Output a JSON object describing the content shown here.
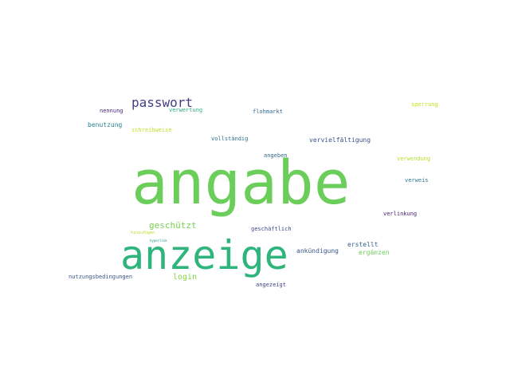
{
  "words": [
    {
      "text": "angabe",
      "color": "#6cce5a"
    },
    {
      "text": "anzeige",
      "color": "#2fb47c"
    },
    {
      "text": "passwort",
      "color": "#433e85"
    },
    {
      "text": "geschützt",
      "color": "#7ad151"
    },
    {
      "text": "login",
      "color": "#86d549"
    },
    {
      "text": "benutzung",
      "color": "#26828e"
    },
    {
      "text": "schreibweise",
      "color": "#c2df23"
    },
    {
      "text": "nennung",
      "color": "#482475"
    },
    {
      "text": "verwertung",
      "color": "#29af7f"
    },
    {
      "text": "flohmarkt",
      "color": "#31688e"
    },
    {
      "text": "sperrung",
      "color": "#c8e020"
    },
    {
      "text": "vollständig",
      "color": "#2c728e"
    },
    {
      "text": "vervielfältigung",
      "color": "#3b528b"
    },
    {
      "text": "angeben",
      "color": "#31688e"
    },
    {
      "text": "verwendung",
      "color": "#b5de2b"
    },
    {
      "text": "verweis",
      "color": "#2a788e"
    },
    {
      "text": "verlinkung",
      "color": "#481c6e"
    },
    {
      "text": "geschäftlich",
      "color": "#3e4989"
    },
    {
      "text": "ankündigung",
      "color": "#39568c"
    },
    {
      "text": "erstellt",
      "color": "#355f8d"
    },
    {
      "text": "ergänzen",
      "color": "#6ece58"
    },
    {
      "text": "nutzungsbedingungen",
      "color": "#39568c"
    },
    {
      "text": "angezeigt",
      "color": "#404688"
    },
    {
      "text": "hinzufügen",
      "color": "#b8de29"
    },
    {
      "text": "hyperlink",
      "color": "#1f968b"
    }
  ]
}
